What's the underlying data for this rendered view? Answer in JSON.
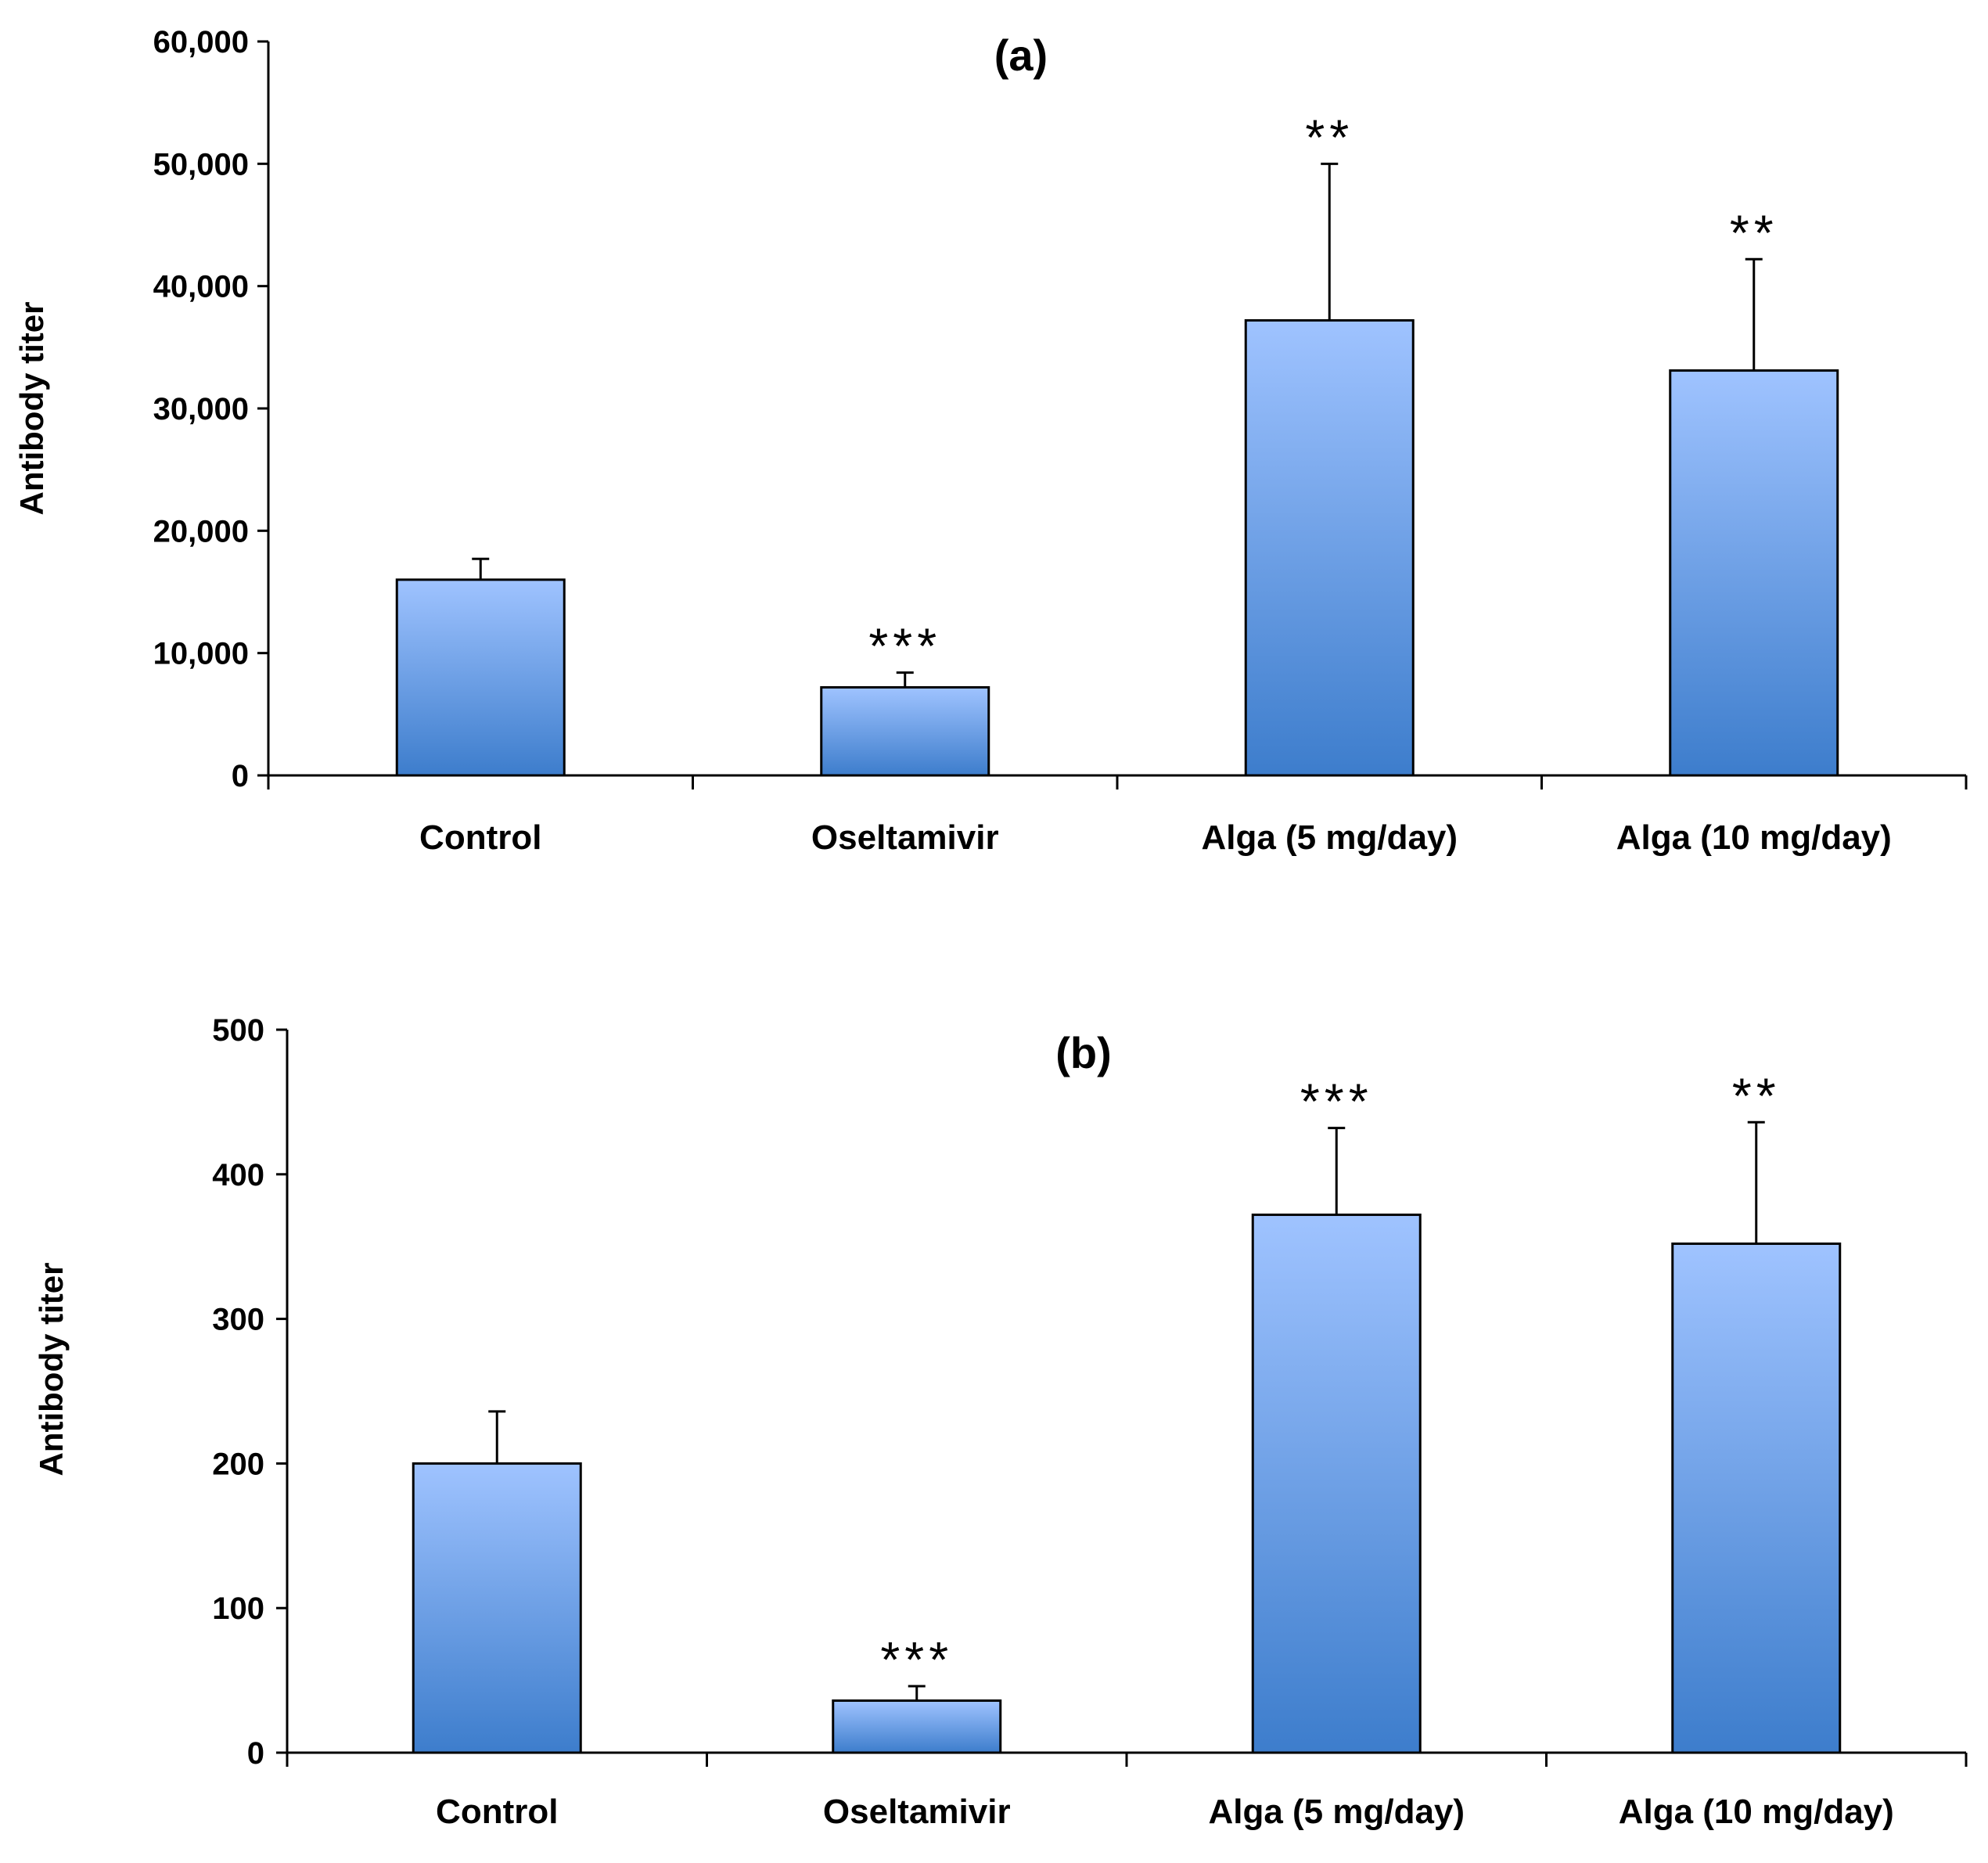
{
  "chart_data": [
    {
      "type": "bar",
      "title": "(a)",
      "ylabel": "Antibody titer",
      "xlabel": "",
      "categories": [
        "Control",
        "Oseltamivir",
        "Alga (5 mg/day)",
        "Alga (10 mg/day)"
      ],
      "values": [
        16000,
        7200,
        37200,
        33100
      ],
      "error": [
        1700,
        1200,
        12800,
        9100
      ],
      "significance": [
        "",
        "***",
        "**",
        "**"
      ],
      "ylim": [
        0,
        60000
      ],
      "yticks": [
        0,
        10000,
        20000,
        30000,
        40000,
        50000,
        60000
      ],
      "ytick_labels": [
        "0",
        "10,000",
        "20,000",
        "30,000",
        "40,000",
        "50,000",
        "60,000"
      ],
      "bar_color_top": "#9fc3ff",
      "bar_color_bottom": "#3d7dcc"
    },
    {
      "type": "bar",
      "title": "(b)",
      "ylabel": "Antibody titer",
      "xlabel": "",
      "categories": [
        "Control",
        "Oseltamivir",
        "Alga (5 mg/day)",
        "Alga (10 mg/day)"
      ],
      "values": [
        200,
        36,
        372,
        352
      ],
      "error": [
        36,
        10,
        60,
        84
      ],
      "significance": [
        "",
        "***",
        "***",
        "**"
      ],
      "ylim": [
        0,
        500
      ],
      "yticks": [
        0,
        100,
        200,
        300,
        400,
        500
      ],
      "ytick_labels": [
        "0",
        "100",
        "200",
        "300",
        "400",
        "500"
      ],
      "bar_color_top": "#9fc3ff",
      "bar_color_bottom": "#3d7dcc"
    }
  ]
}
